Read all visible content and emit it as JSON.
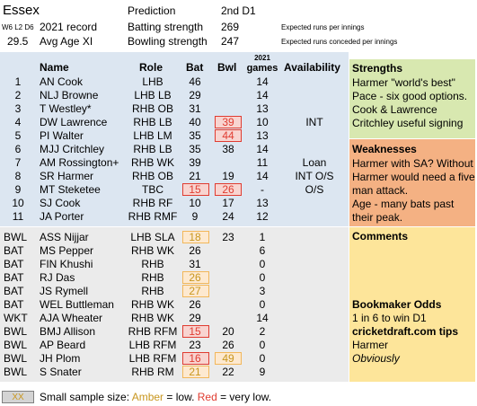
{
  "header": {
    "team": "Essex",
    "prediction_label": "Prediction",
    "prediction_value": "2nd D1",
    "record_small": "W6 L2 D6",
    "record_label": "2021 record",
    "batting_label": "Batting strength",
    "batting_value": "269",
    "batting_note": "Expected runs per innings",
    "avg_age": "29.5",
    "avg_age_label": "Avg Age XI",
    "bowling_label": "Bowling strength",
    "bowling_value": "247",
    "bowling_note": "Expected runs conceded per innings"
  },
  "columns": {
    "name": "Name",
    "role": "Role",
    "bat": "Bat",
    "bwl": "Bwl",
    "games_top": "2021",
    "games_bottom": "games",
    "availability": "Availability"
  },
  "xi": [
    {
      "num": "1",
      "name": "AN Cook",
      "role": "LHB",
      "bat": "46",
      "bwl": "",
      "games": "14",
      "avail": ""
    },
    {
      "num": "2",
      "name": "NLJ Browne",
      "role": "LHB LB",
      "bat": "29",
      "bwl": "",
      "games": "14",
      "avail": ""
    },
    {
      "num": "3",
      "name": "T Westley*",
      "role": "RHB OB",
      "bat": "31",
      "bwl": "",
      "games": "13",
      "avail": ""
    },
    {
      "num": "4",
      "name": "DW Lawrence",
      "role": "RHB LB",
      "bat": "40",
      "bwl": "39",
      "games": "10",
      "avail": "INT"
    },
    {
      "num": "5",
      "name": "PI Walter",
      "role": "LHB LM",
      "bat": "35",
      "bwl": "44",
      "games": "13",
      "avail": ""
    },
    {
      "num": "6",
      "name": "MJJ Critchley",
      "role": "RHB LB",
      "bat": "35",
      "bwl": "38",
      "games": "14",
      "avail": ""
    },
    {
      "num": "7",
      "name": "AM Rossington+",
      "role": "RHB WK",
      "bat": "39",
      "bwl": "",
      "games": "11",
      "avail": "Loan"
    },
    {
      "num": "8",
      "name": "SR Harmer",
      "role": "RHB OB",
      "bat": "21",
      "bwl": "19",
      "games": "14",
      "avail": "INT O/S"
    },
    {
      "num": "9",
      "name": "MT Steketee",
      "role": "TBC",
      "bat": "15",
      "bwl": "26",
      "games": "-",
      "avail": "O/S"
    },
    {
      "num": "10",
      "name": "SJ Cook",
      "role": "RHB RF",
      "bat": "10",
      "bwl": "17",
      "games": "13",
      "avail": ""
    },
    {
      "num": "11",
      "name": "JA Porter",
      "role": "RHB RMF",
      "bat": "9",
      "bwl": "24",
      "games": "12",
      "avail": ""
    }
  ],
  "squad": [
    {
      "type": "BWL",
      "name": "ASS Nijjar",
      "role": "LHB SLA",
      "bat": "18",
      "bwl": "23",
      "games": "1"
    },
    {
      "type": "BAT",
      "name": "MS Pepper",
      "role": "RHB WK",
      "bat": "26",
      "bwl": "",
      "games": "6"
    },
    {
      "type": "BAT",
      "name": "FIN Khushi",
      "role": "RHB",
      "bat": "31",
      "bwl": "",
      "games": "0"
    },
    {
      "type": "BAT",
      "name": "RJ Das",
      "role": "RHB",
      "bat": "26",
      "bwl": "",
      "games": "0"
    },
    {
      "type": "BAT",
      "name": "JS Rymell",
      "role": "RHB",
      "bat": "27",
      "bwl": "",
      "games": "3"
    },
    {
      "type": "BAT",
      "name": "WEL Buttleman",
      "role": "RHB WK",
      "bat": "26",
      "bwl": "",
      "games": "0"
    },
    {
      "type": "WKT",
      "name": "AJA Wheater",
      "role": "RHB WK",
      "bat": "29",
      "bwl": "",
      "games": "14"
    },
    {
      "type": "BWL",
      "name": "BMJ Allison",
      "role": "RHB RFM",
      "bat": "15",
      "bwl": "20",
      "games": "2"
    },
    {
      "type": "BWL",
      "name": "AP Beard",
      "role": "LHB RFM",
      "bat": "23",
      "bwl": "26",
      "games": "0"
    },
    {
      "type": "BWL",
      "name": "JH Plom",
      "role": "LHB RFM",
      "bat": "16",
      "bwl": "49",
      "games": "0"
    },
    {
      "type": "BWL",
      "name": "S Snater",
      "role": "RHB RM",
      "bat": "21",
      "bwl": "22",
      "games": "9"
    }
  ],
  "strengths": {
    "title": "Strengths",
    "lines": [
      "Harmer \"world's best\"",
      "Pace - six good options.",
      "Cook & Lawrence",
      "Critchley useful signing"
    ]
  },
  "weaknesses": {
    "title": "Weaknesses",
    "lines": [
      "Harmer with SA? Without",
      "Harmer would need a five",
      "man attack.",
      "Age - many bats past",
      "their peak."
    ]
  },
  "comments": {
    "title": "Comments"
  },
  "odds": {
    "title": "Bookmaker Odds",
    "text": "1 in 6 to win D1"
  },
  "tips": {
    "title": "cricketdraft.com tips",
    "line1": "Harmer",
    "line2": "Obviously"
  },
  "legend": {
    "box_text": "XX",
    "prefix": "Small sample size: ",
    "amber": "Amber",
    "mid": " = low. ",
    "red": "Red",
    "suffix": " = very low."
  },
  "colors": {
    "xi_bg": "#dce6f1",
    "squad_bg": "#ebebeb",
    "strengths_bg": "#d8e8b0",
    "weaknesses_bg": "#f4b183",
    "comments_bg": "#fde59a",
    "amber": "#f2b75a",
    "red": "#e03c31"
  }
}
